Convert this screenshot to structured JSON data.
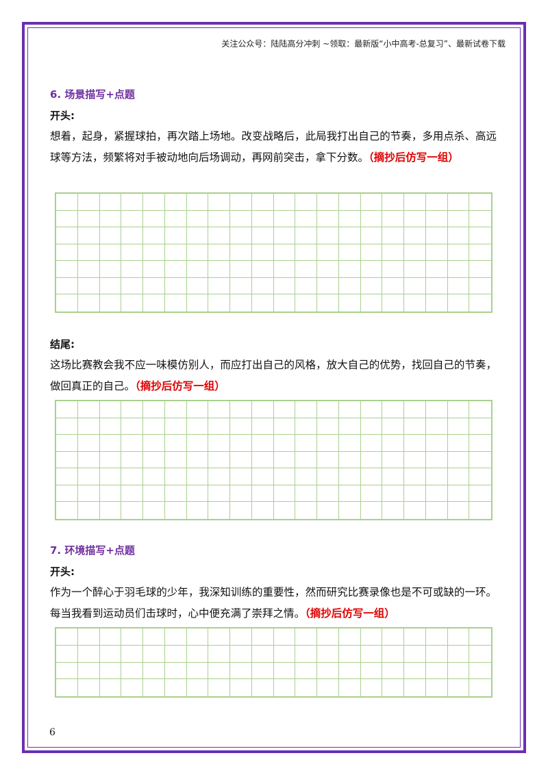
{
  "header_note": "关注公众号：陆陆高分冲刺 ~领取：最新版“小中高考-总复习”、最新试卷下载",
  "sections": [
    {
      "title": "6. 场景描写+点题",
      "opening_label": "开头:",
      "opening_text": "想着，起身，紧握球拍，再次踏上场地。改变战略后，此局我打出自己的节奏，多用点杀、高远球等方法，频繁将对手被动地向后场调动，再网前突击，拿下分数。",
      "opening_note": "（摘抄后仿写一组）",
      "ending_label": "结尾:",
      "ending_text": "这场比赛教会我不应一味模仿别人，而应打出自己的风格，放大自己的优势，找回自己的节奏，做回真正的自己。",
      "ending_note": "（摘抄后仿写一组）"
    },
    {
      "title": "7. 环境描写+点题",
      "opening_label": "开头:",
      "opening_text": "作为一个醉心于羽毛球的少年，我深知训练的重要性，然而研究比赛录像也是不可或缺的一环。每当我看到运动员们击球时，心中便充满了崇拜之情。",
      "opening_note": "（摘抄后仿写一组）"
    }
  ],
  "page_number": "6"
}
